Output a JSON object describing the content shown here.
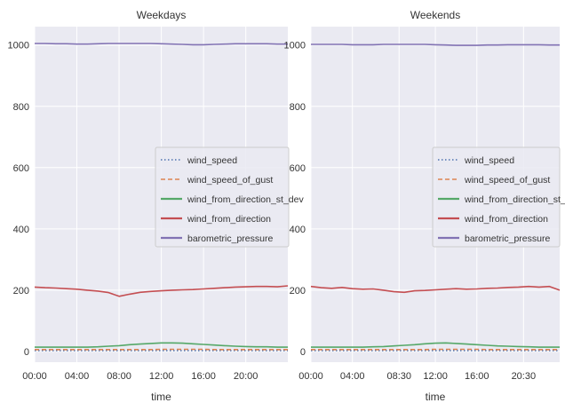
{
  "chart_data": [
    {
      "type": "line",
      "title": "Weekdays",
      "xlabel": "time",
      "ylabel": "",
      "x": [
        "00:00",
        "01:00",
        "02:00",
        "03:00",
        "04:00",
        "05:00",
        "06:00",
        "07:00",
        "08:00",
        "09:00",
        "10:00",
        "11:00",
        "12:00",
        "13:00",
        "14:00",
        "15:00",
        "16:00",
        "17:00",
        "18:00",
        "19:00",
        "20:00",
        "21:00",
        "22:00",
        "23:00",
        "23:59"
      ],
      "x_ticks": [
        "00:00",
        "04:00",
        "08:00",
        "12:00",
        "16:00",
        "20:00"
      ],
      "y_ticks": [
        0,
        200,
        400,
        600,
        800,
        1000
      ],
      "ylim": [
        -35,
        1060
      ],
      "grid": true,
      "legend": "center-right",
      "series": [
        {
          "name": "wind_speed",
          "style": "dotted",
          "color": "#4c72b0",
          "values": [
            3,
            3,
            3,
            3,
            3,
            3,
            3,
            3,
            3,
            3,
            3,
            3,
            3,
            3,
            3,
            3,
            3,
            3,
            3,
            3,
            3,
            3,
            3,
            3,
            3
          ]
        },
        {
          "name": "wind_speed_of_gust",
          "style": "dashed",
          "color": "#dd8452",
          "values": [
            6,
            6,
            6,
            6,
            6,
            6,
            6,
            6,
            6,
            6,
            6,
            6,
            7,
            7,
            7,
            7,
            7,
            6,
            6,
            6,
            6,
            6,
            6,
            6,
            6
          ]
        },
        {
          "name": "wind_from_direction_st_dev",
          "style": "solid",
          "color": "#55a868",
          "values": [
            14,
            14,
            14,
            14,
            14,
            14,
            15,
            17,
            19,
            22,
            24,
            26,
            28,
            28,
            27,
            25,
            23,
            21,
            19,
            17,
            16,
            15,
            15,
            14,
            14
          ]
        },
        {
          "name": "wind_from_direction",
          "style": "solid",
          "color": "#c44e52",
          "values": [
            210,
            208,
            207,
            205,
            203,
            200,
            197,
            192,
            180,
            187,
            193,
            196,
            198,
            200,
            201,
            202,
            204,
            206,
            208,
            210,
            211,
            212,
            212,
            211,
            214
          ]
        },
        {
          "name": "barometric_pressure",
          "style": "solid",
          "color": "#8172b3",
          "values": [
            1005,
            1005,
            1004,
            1004,
            1003,
            1003,
            1004,
            1005,
            1005,
            1005,
            1005,
            1005,
            1004,
            1003,
            1002,
            1001,
            1001,
            1002,
            1003,
            1004,
            1004,
            1004,
            1004,
            1003,
            1003
          ]
        }
      ]
    },
    {
      "type": "line",
      "title": "Weekends",
      "xlabel": "time",
      "ylabel": "",
      "x": [
        "00:00",
        "01:00",
        "02:00",
        "03:00",
        "04:00",
        "05:00",
        "06:00",
        "07:00",
        "08:00",
        "09:00",
        "10:00",
        "11:00",
        "12:00",
        "13:00",
        "14:00",
        "15:00",
        "16:00",
        "17:00",
        "18:00",
        "19:00",
        "20:00",
        "21:00",
        "22:00",
        "23:00",
        "23:59"
      ],
      "x_ticks": [
        "00:00",
        "04:00",
        "08:30",
        "12:00",
        "16:00",
        "20:30"
      ],
      "y_ticks": [
        0,
        200,
        400,
        600,
        800,
        1000
      ],
      "ylim": [
        -35,
        1060
      ],
      "grid": true,
      "legend": "center-right",
      "series": [
        {
          "name": "wind_speed",
          "style": "dotted",
          "color": "#4c72b0",
          "values": [
            3,
            3,
            3,
            3,
            3,
            3,
            3,
            3,
            3,
            3,
            3,
            3,
            3,
            3,
            3,
            3,
            3,
            3,
            3,
            3,
            3,
            3,
            3,
            3,
            3
          ]
        },
        {
          "name": "wind_speed_of_gust",
          "style": "dashed",
          "color": "#dd8452",
          "values": [
            6,
            6,
            6,
            6,
            6,
            6,
            6,
            6,
            6,
            6,
            6,
            6,
            7,
            7,
            7,
            7,
            7,
            6,
            6,
            6,
            6,
            6,
            6,
            6,
            6
          ]
        },
        {
          "name": "wind_from_direction_st_dev",
          "style": "solid",
          "color": "#55a868",
          "values": [
            14,
            14,
            14,
            14,
            14,
            14,
            15,
            16,
            18,
            20,
            22,
            25,
            27,
            28,
            26,
            24,
            22,
            20,
            18,
            17,
            16,
            15,
            14,
            14,
            14
          ]
        },
        {
          "name": "wind_from_direction",
          "style": "solid",
          "color": "#c44e52",
          "values": [
            212,
            208,
            206,
            209,
            205,
            203,
            204,
            200,
            195,
            193,
            198,
            199,
            201,
            203,
            205,
            203,
            204,
            206,
            207,
            209,
            210,
            212,
            210,
            212,
            200
          ]
        },
        {
          "name": "barometric_pressure",
          "style": "solid",
          "color": "#8172b3",
          "values": [
            1002,
            1002,
            1002,
            1002,
            1001,
            1001,
            1001,
            1002,
            1002,
            1002,
            1002,
            1002,
            1001,
            1000,
            999,
            999,
            999,
            1000,
            1000,
            1001,
            1001,
            1001,
            1001,
            1000,
            1000
          ]
        }
      ]
    }
  ]
}
